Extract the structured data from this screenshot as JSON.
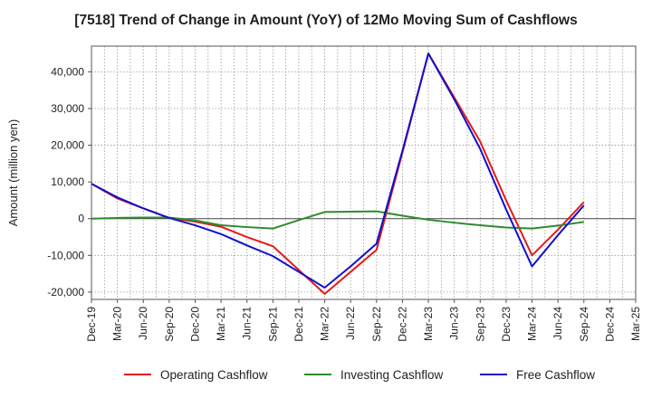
{
  "chart_data": {
    "type": "line",
    "title": "[7518]  Trend of Change in Amount (YoY) of 12Mo Moving Sum of Cashflows",
    "xlabel": "",
    "ylabel": "Amount (million yen)",
    "categories": [
      "Dec-19",
      "Mar-20",
      "Jun-20",
      "Sep-20",
      "Dec-20",
      "Mar-21",
      "Jun-21",
      "Sep-21",
      "Dec-21",
      "Mar-22",
      "Jun-22",
      "Sep-22",
      "Dec-22",
      "Mar-23",
      "Jun-23",
      "Sep-23",
      "Dec-23",
      "Mar-24",
      "Jun-24",
      "Sep-24",
      "Dec-24",
      "Mar-25"
    ],
    "ylim": [
      -22000,
      47000
    ],
    "yticks": [
      -20000,
      -10000,
      0,
      10000,
      20000,
      30000,
      40000
    ],
    "ytick_labels": [
      "-20,000",
      "-10,000",
      "0",
      "10,000",
      "20,000",
      "30,000",
      "40,000"
    ],
    "grid": true,
    "legend_position": "bottom",
    "series": [
      {
        "name": "Operating Cashflow",
        "color": "#e41a1c",
        "values": [
          9500,
          5500,
          2800,
          200,
          -800,
          -2200,
          -5000,
          -7500,
          -14000,
          -20500,
          -14500,
          -8500,
          18000,
          45000,
          33000,
          21000,
          5000,
          -10000,
          -3000,
          4500,
          null,
          null
        ]
      },
      {
        "name": "Investing Cashflow",
        "color": "#2e8b2e",
        "values": [
          0,
          200,
          300,
          300,
          -500,
          -1800,
          -2300,
          -2700,
          -400,
          1800,
          1900,
          2000,
          800,
          -300,
          -1100,
          -1800,
          -2400,
          -2700,
          -1900,
          -900,
          null,
          null
        ]
      },
      {
        "name": "Free Cashflow",
        "color": "#1010cc",
        "values": [
          9500,
          5800,
          2800,
          200,
          -1800,
          -4200,
          -7300,
          -10200,
          -14500,
          -18800,
          -13000,
          -6800,
          18500,
          45000,
          32500,
          19000,
          2500,
          -13000,
          -4500,
          3600,
          null,
          null
        ]
      }
    ]
  }
}
